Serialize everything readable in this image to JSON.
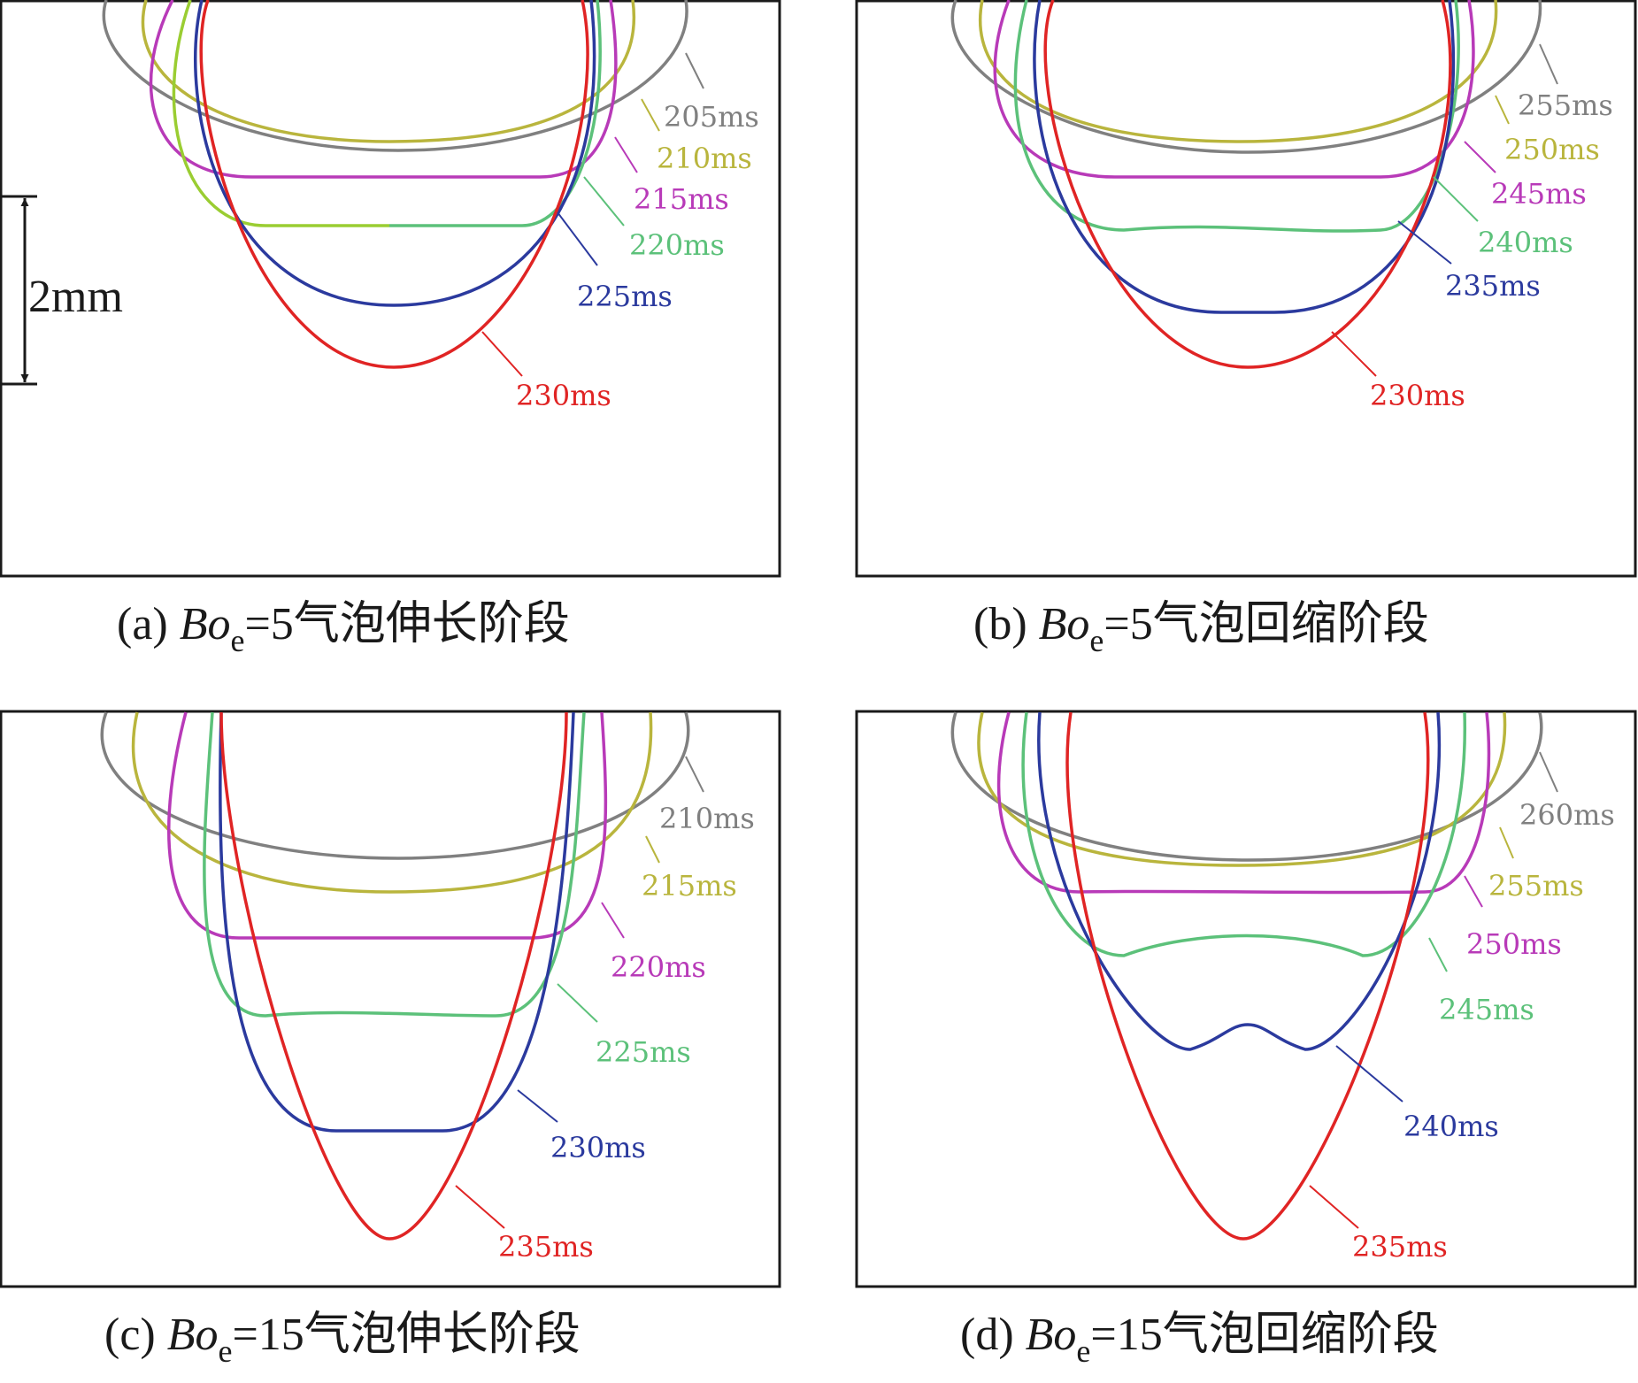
{
  "colors": {
    "gray": "#808080",
    "olive": "#b9b53d",
    "magenta": "#b83ab8",
    "green": "#5cc17a",
    "lime": "#9acd32",
    "blue": "#2b3a9e",
    "red": "#e02424",
    "frame": "#1a1a1a"
  },
  "scale_bar": {
    "label": "2mm"
  },
  "panels": [
    {
      "caption": {
        "letter": "(a) ",
        "var": "Bo",
        "sub": "e",
        "rest": "=5气泡伸长阶段"
      },
      "curves": [
        {
          "label": "205ms",
          "color": "gray"
        },
        {
          "label": "210ms",
          "color": "olive"
        },
        {
          "label": "215ms",
          "color": "magenta"
        },
        {
          "label": "220ms",
          "color": "green"
        },
        {
          "label": "225ms",
          "color": "blue"
        },
        {
          "label": "230ms",
          "color": "red"
        }
      ]
    },
    {
      "caption": {
        "letter": "(b) ",
        "var": "Bo",
        "sub": "e",
        "rest": "=5气泡回缩阶段"
      },
      "curves": [
        {
          "label": "255ms",
          "color": "gray"
        },
        {
          "label": "250ms",
          "color": "olive"
        },
        {
          "label": "245ms",
          "color": "magenta"
        },
        {
          "label": "240ms",
          "color": "green"
        },
        {
          "label": "235ms",
          "color": "blue"
        },
        {
          "label": "230ms",
          "color": "red"
        }
      ]
    },
    {
      "caption": {
        "letter": "(c) ",
        "var": "Bo",
        "sub": "e",
        "rest": "=15气泡伸长阶段"
      },
      "curves": [
        {
          "label": "210ms",
          "color": "gray"
        },
        {
          "label": "215ms",
          "color": "olive"
        },
        {
          "label": "220ms",
          "color": "magenta"
        },
        {
          "label": "225ms",
          "color": "green"
        },
        {
          "label": "230ms",
          "color": "blue"
        },
        {
          "label": "235ms",
          "color": "red"
        }
      ]
    },
    {
      "caption": {
        "letter": "(d) ",
        "var": "Bo",
        "sub": "e",
        "rest": "=15气泡回缩阶段"
      },
      "curves": [
        {
          "label": "260ms",
          "color": "gray"
        },
        {
          "label": "255ms",
          "color": "olive"
        },
        {
          "label": "250ms",
          "color": "magenta"
        },
        {
          "label": "245ms",
          "color": "green"
        },
        {
          "label": "240ms",
          "color": "blue"
        },
        {
          "label": "235ms",
          "color": "red"
        }
      ]
    }
  ]
}
